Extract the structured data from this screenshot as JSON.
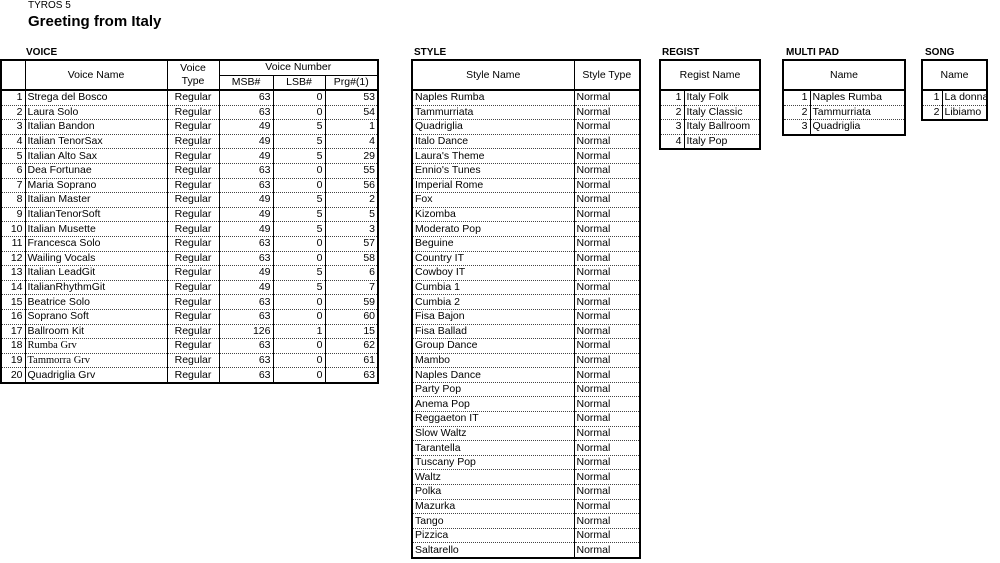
{
  "header": {
    "brand": "TYROS 5",
    "title": "Greeting from Italy"
  },
  "voice": {
    "section": "VOICE",
    "headers": {
      "name": "Voice Name",
      "type": "Voice Type",
      "number": "Voice Number",
      "msb": "MSB#",
      "lsb": "LSB#",
      "prg": "Prg#(1)"
    },
    "rows": [
      [
        "1",
        "Strega del Bosco",
        "Regular",
        "63",
        "0",
        "53"
      ],
      [
        "2",
        "Laura Solo",
        "Regular",
        "63",
        "0",
        "54"
      ],
      [
        "3",
        "Italian Bandon",
        "Regular",
        "49",
        "5",
        "1"
      ],
      [
        "4",
        "Italian TenorSax",
        "Regular",
        "49",
        "5",
        "4"
      ],
      [
        "5",
        "Italian Alto Sax",
        "Regular",
        "49",
        "5",
        "29"
      ],
      [
        "6",
        "Dea Fortunae",
        "Regular",
        "63",
        "0",
        "55"
      ],
      [
        "7",
        "Maria Soprano",
        "Regular",
        "63",
        "0",
        "56"
      ],
      [
        "8",
        "Italian Master",
        "Regular",
        "49",
        "5",
        "2"
      ],
      [
        "9",
        "ItalianTenorSoft",
        "Regular",
        "49",
        "5",
        "5"
      ],
      [
        "10",
        "Italian Musette",
        "Regular",
        "49",
        "5",
        "3"
      ],
      [
        "11",
        "Francesca Solo",
        "Regular",
        "63",
        "0",
        "57"
      ],
      [
        "12",
        "Wailing Vocals",
        "Regular",
        "63",
        "0",
        "58"
      ],
      [
        "13",
        "Italian LeadGit",
        "Regular",
        "49",
        "5",
        "6"
      ],
      [
        "14",
        "ItalianRhythmGit",
        "Regular",
        "49",
        "5",
        "7"
      ],
      [
        "15",
        "Beatrice Solo",
        "Regular",
        "63",
        "0",
        "59"
      ],
      [
        "16",
        "Soprano Soft",
        "Regular",
        "63",
        "0",
        "60"
      ],
      [
        "17",
        "Ballroom Kit",
        "Regular",
        "126",
        "1",
        "15"
      ],
      [
        "18",
        "Rumba Grv",
        "Regular",
        "63",
        "0",
        "62"
      ],
      [
        "19",
        "Tammorra Grv",
        "Regular",
        "63",
        "0",
        "61"
      ],
      [
        "20",
        "Quadriglia Grv",
        "Regular",
        "63",
        "0",
        "63"
      ]
    ]
  },
  "style": {
    "section": "STYLE",
    "headers": {
      "name": "Style Name",
      "type": "Style Type"
    },
    "rows": [
      [
        "Naples Rumba",
        "Normal"
      ],
      [
        "Tammurriata",
        "Normal"
      ],
      [
        "Quadriglia",
        "Normal"
      ],
      [
        "Italo Dance",
        "Normal"
      ],
      [
        "Laura's Theme",
        "Normal"
      ],
      [
        "Ennio's Tunes",
        "Normal"
      ],
      [
        "Imperial Rome",
        "Normal"
      ],
      [
        "Fox",
        "Normal"
      ],
      [
        "Kizomba",
        "Normal"
      ],
      [
        "Moderato Pop",
        "Normal"
      ],
      [
        "Beguine",
        "Normal"
      ],
      [
        "Country IT",
        "Normal"
      ],
      [
        "Cowboy IT",
        "Normal"
      ],
      [
        "Cumbia 1",
        "Normal"
      ],
      [
        "Cumbia 2",
        "Normal"
      ],
      [
        "Fisa Bajon",
        "Normal"
      ],
      [
        "Fisa Ballad",
        "Normal"
      ],
      [
        "Group Dance",
        "Normal"
      ],
      [
        "Mambo",
        "Normal"
      ],
      [
        "Naples Dance",
        "Normal"
      ],
      [
        "Party Pop",
        "Normal"
      ],
      [
        "Anema Pop",
        "Normal"
      ],
      [
        "Reggaeton IT",
        "Normal"
      ],
      [
        "Slow Waltz",
        "Normal"
      ],
      [
        "Tarantella",
        "Normal"
      ],
      [
        "Tuscany Pop",
        "Normal"
      ],
      [
        "Waltz",
        "Normal"
      ],
      [
        "Polka",
        "Normal"
      ],
      [
        "Mazurka",
        "Normal"
      ],
      [
        "Tango",
        "Normal"
      ],
      [
        "Pizzica",
        "Normal"
      ],
      [
        "Saltarello",
        "Normal"
      ]
    ]
  },
  "regist": {
    "section": "REGIST",
    "header": "Regist Name",
    "rows": [
      [
        "1",
        "Italy Folk"
      ],
      [
        "2",
        "Italy Classic"
      ],
      [
        "3",
        "Italy Ballroom"
      ],
      [
        "4",
        "Italy Pop"
      ]
    ]
  },
  "multipad": {
    "section": "MULTI PAD",
    "header": "Name",
    "rows": [
      [
        "1",
        "Naples Rumba"
      ],
      [
        "2",
        "Tammurriata"
      ],
      [
        "3",
        "Quadriglia"
      ]
    ]
  },
  "song": {
    "section": "SONG",
    "header": "Name",
    "rows": [
      [
        "1",
        "La donna"
      ],
      [
        "2",
        "Libiamo"
      ]
    ]
  }
}
